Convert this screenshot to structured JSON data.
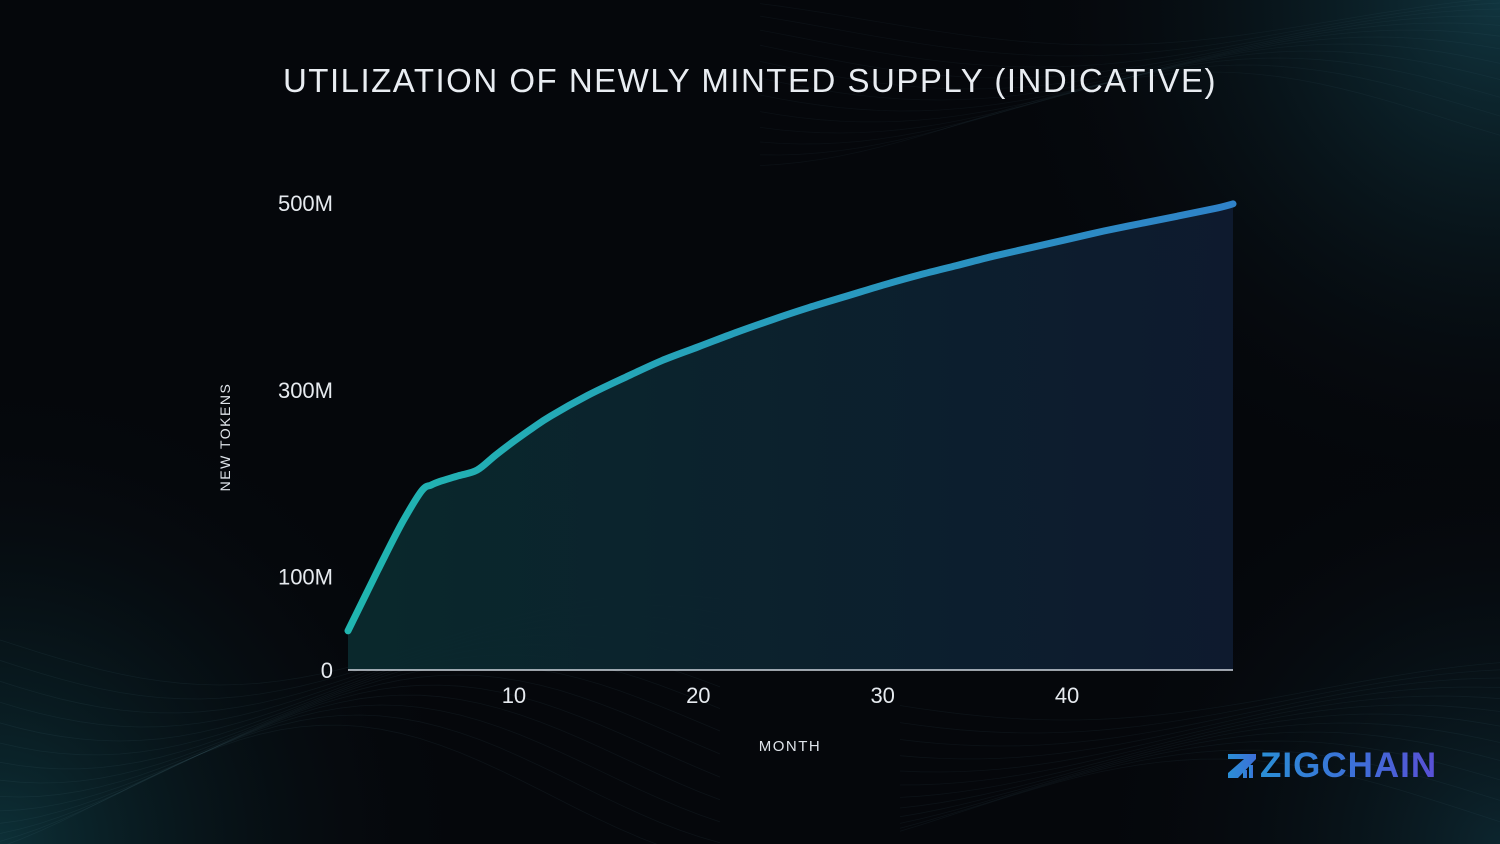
{
  "chart_data": {
    "type": "area",
    "title": "UTILIZATION OF NEWLY MINTED SUPPLY (INDICATIVE)",
    "xlabel": "MONTH",
    "ylabel": "NEW TOKENS",
    "xlim": [
      1,
      49
    ],
    "ylim": [
      0,
      500
    ],
    "x_ticks": [
      10,
      20,
      30,
      40
    ],
    "x_tick_labels": [
      "10",
      "20",
      "30",
      "40"
    ],
    "y_ticks": [
      0,
      100,
      300,
      500
    ],
    "y_tick_labels": [
      "0",
      "100M",
      "300M",
      "500M"
    ],
    "grid": false,
    "legend": "none",
    "colors": {
      "line_start": "#20b6b0",
      "line_end": "#2f82c8",
      "fill_start": "#0a2a2e",
      "fill_end": "#0e1b30"
    },
    "series": [
      {
        "x": [
          1,
          2,
          3,
          4,
          5,
          5.5,
          6,
          7,
          8,
          9,
          10,
          11,
          12,
          14,
          16,
          18,
          20,
          22,
          24,
          26,
          28,
          30,
          32,
          34,
          36,
          38,
          40,
          42,
          44,
          46,
          48,
          49
        ],
        "values": [
          42,
          82,
          122,
          160,
          192,
          198,
          202,
          208,
          214,
          230,
          245,
          259,
          272,
          294,
          313,
          331,
          346,
          361,
          375,
          388,
          400,
          412,
          423,
          433,
          443,
          452,
          461,
          470,
          478,
          486,
          494,
          499
        ]
      }
    ]
  },
  "logo": {
    "text": "ZIGCHAIN"
  }
}
